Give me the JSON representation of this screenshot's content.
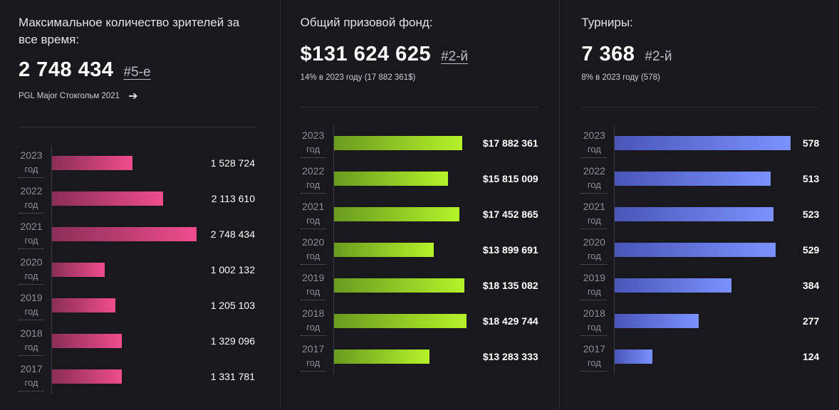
{
  "panels": [
    {
      "title": "Максимальное количество зрителей за все время:",
      "big_value": "2 748 434",
      "rank": "#5-е",
      "subtext": "PGL Major Стокгольм 2021",
      "subtext_has_arrow": true,
      "accent": "#f04d8d"
    },
    {
      "title": "Общий призовой фонд:",
      "big_value": "$131 624 625",
      "rank": "#2-й",
      "subtext": "14% в 2023 году (17 882 361$)",
      "accent": "#b6f22a"
    },
    {
      "title": "Турниры:",
      "big_value": "7 368",
      "rank": "#2-й",
      "subtext": "8% в 2023 году (578)",
      "accent": "#7b92ff"
    }
  ],
  "year_suffix": "год",
  "chart_data": [
    {
      "type": "bar",
      "orientation": "horizontal",
      "categories": [
        "2023",
        "2022",
        "2021",
        "2020",
        "2019",
        "2018",
        "2017"
      ],
      "values": [
        1528724,
        2113610,
        2748434,
        1002132,
        1205103,
        1329096,
        1331781
      ],
      "labels": [
        "1 528 724",
        "2 113 610",
        "2 748 434",
        "1 002 132",
        "1 205 103",
        "1 329 096",
        "1 331 781"
      ],
      "xlim": [
        0,
        2748434
      ]
    },
    {
      "type": "bar",
      "orientation": "horizontal",
      "categories": [
        "2023",
        "2022",
        "2021",
        "2020",
        "2019",
        "2018",
        "2017"
      ],
      "values": [
        17882361,
        15815009,
        17452865,
        13899691,
        18135082,
        18429744,
        13283333
      ],
      "labels": [
        "$17 882 361",
        "$15 815 009",
        "$17 452 865",
        "$13 899 691",
        "$18 135 082",
        "$18 429 744",
        "$13 283 333"
      ],
      "xlim": [
        0,
        18429744
      ]
    },
    {
      "type": "bar",
      "orientation": "horizontal",
      "categories": [
        "2023",
        "2022",
        "2021",
        "2020",
        "2019",
        "2018",
        "2017"
      ],
      "values": [
        578,
        513,
        523,
        529,
        384,
        277,
        124
      ],
      "labels": [
        "578",
        "513",
        "523",
        "529",
        "384",
        "277",
        "124"
      ],
      "xlim": [
        0,
        578
      ]
    }
  ]
}
